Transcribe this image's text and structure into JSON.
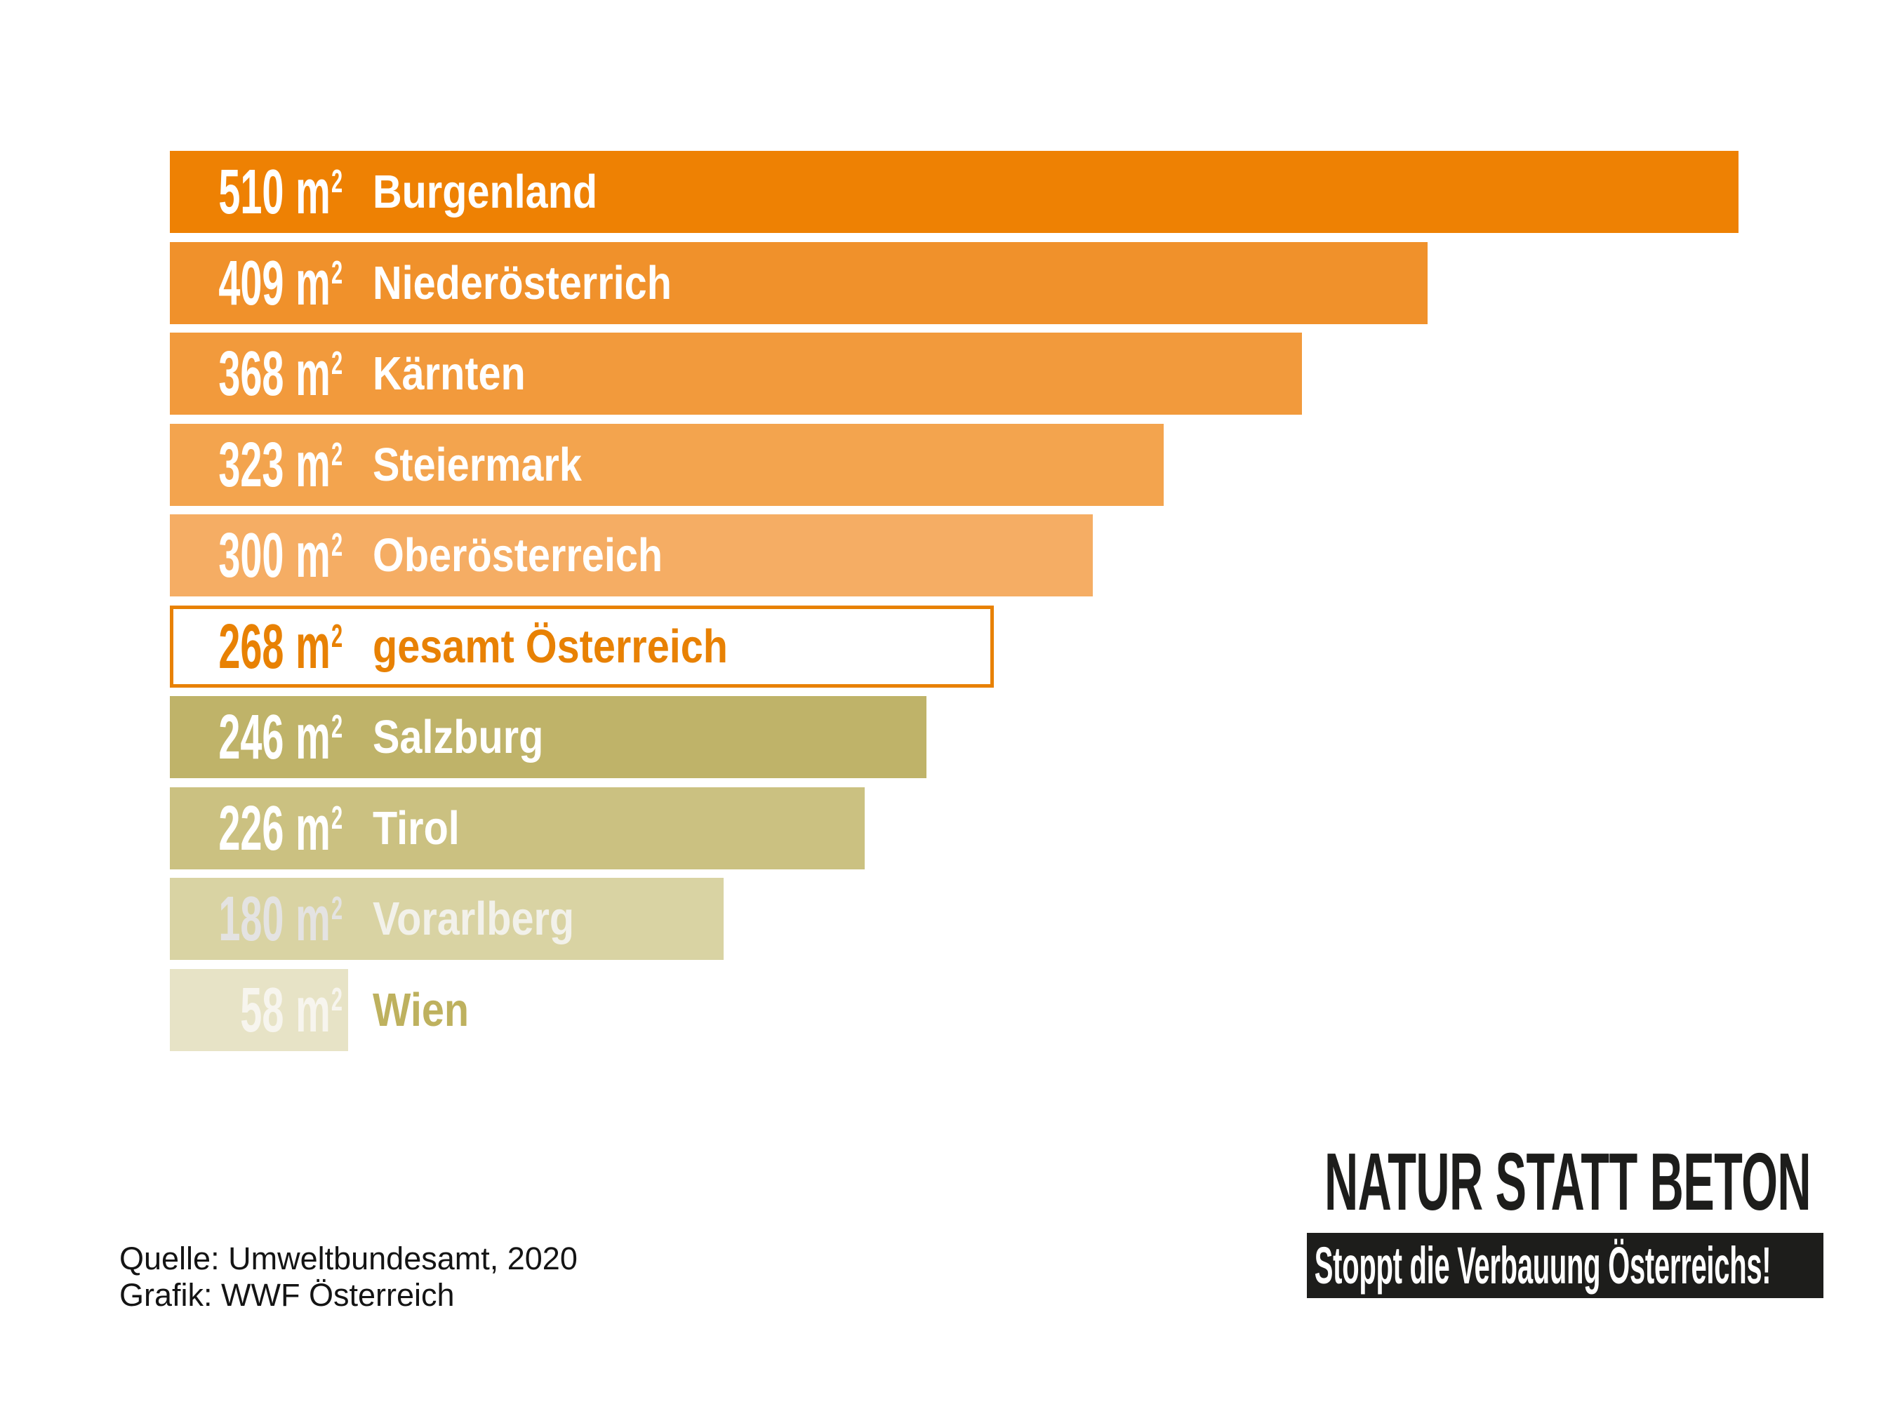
{
  "chart_data": {
    "type": "bar",
    "orientation": "horizontal",
    "unit": "m²",
    "unit_base": "m",
    "unit_sup": "2",
    "xlim": [
      0,
      510
    ],
    "grid": false,
    "legend": false,
    "categories": [
      "Burgenland",
      "Niederösterrich",
      "Kärnten",
      "Steiermark",
      "Oberösterreich",
      "gesamt Österreich",
      "Salzburg",
      "Tirol",
      "Vorarlberg",
      "Wien"
    ],
    "values": [
      510,
      409,
      368,
      323,
      300,
      268,
      246,
      226,
      180,
      58
    ],
    "items": [
      {
        "id": "burgenland",
        "value": "510",
        "label": "Burgenland",
        "bar_color": "#EE8103",
        "num_color": "#FFFFFF",
        "label_color": "#FFFFFF",
        "highlight": false
      },
      {
        "id": "niederoesterrich",
        "value": "409",
        "label": "Niederösterrich",
        "bar_color": "#F0912B",
        "num_color": "#FFFFFF",
        "label_color": "#FFFFFF",
        "highlight": false
      },
      {
        "id": "kaernten",
        "value": "368",
        "label": "Kärnten",
        "bar_color": "#F29A3C",
        "num_color": "#FFFFFF",
        "label_color": "#FFFFFF",
        "highlight": false
      },
      {
        "id": "steiermark",
        "value": "323",
        "label": "Steiermark",
        "bar_color": "#F3A44E",
        "num_color": "#FFFFFF",
        "label_color": "#FFFFFF",
        "highlight": false
      },
      {
        "id": "oberoesterreich",
        "value": "300",
        "label": "Oberösterreich",
        "bar_color": "#F5AD64",
        "num_color": "#FFFFFF",
        "label_color": "#FFFFFF",
        "highlight": false
      },
      {
        "id": "gesamt-oesterreich",
        "value": "268",
        "label": "gesamt Österreich",
        "bar_color": "#FFFFFF",
        "num_color": "#E88103",
        "label_color": "#E88103",
        "highlight": true,
        "border_color": "#E88103"
      },
      {
        "id": "salzburg",
        "value": "246",
        "label": "Salzburg",
        "bar_color": "#BFB369",
        "num_color": "#FFFFFF",
        "label_color": "#FFFFFF",
        "highlight": false
      },
      {
        "id": "tirol",
        "value": "226",
        "label": "Tirol",
        "bar_color": "#CBC181",
        "num_color": "#FFFFFF",
        "label_color": "#FFFFFF",
        "highlight": false
      },
      {
        "id": "vorarlberg",
        "value": "180",
        "label": "Vorarlberg",
        "bar_color": "#D9D3A3",
        "num_color": "#E4E3E2",
        "label_color": "#F2F1EA",
        "highlight": false
      },
      {
        "id": "wien",
        "value": "58",
        "label": "Wien",
        "bar_color": "#E7E3C6",
        "num_color": "#F7F5EE",
        "label_color": "#BEB15E",
        "highlight": false
      }
    ]
  },
  "branding": {
    "title": "NATUR STATT BETON",
    "subtitle": "Stoppt die Verbauung Österreichs!",
    "title_color": "#1D1D1B",
    "box_bg": "#1D1D1B",
    "subtitle_color": "#FFFFFF"
  },
  "source": {
    "line1": "Quelle: Umweltbundesamt, 2020",
    "line2": "Grafik: WWF Österreich"
  }
}
